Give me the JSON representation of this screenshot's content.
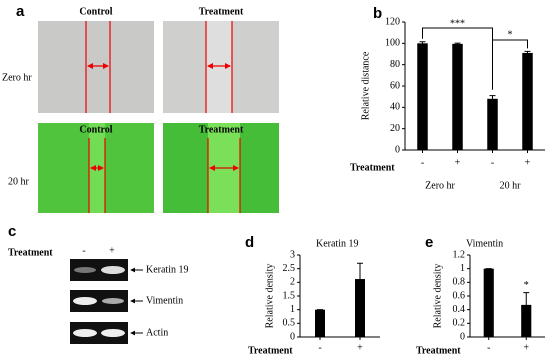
{
  "panel_a": {
    "label": "a",
    "columns": [
      "Control",
      "Treatment"
    ],
    "rows": [
      "Zero hr",
      "20 hr"
    ]
  },
  "panel_c": {
    "label": "c",
    "xlabel": "Treatment",
    "lanes": [
      "-",
      "+"
    ],
    "bands": [
      "Keratin 19",
      "Vimentin",
      "Actin"
    ]
  },
  "chart_data": [
    {
      "type": "bar",
      "label": "b",
      "ylabel": "Relative distance",
      "xlabel": "Treatment",
      "categories": [
        "-",
        "+",
        "-",
        "+"
      ],
      "groups": [
        "Zero hr",
        "20 hr"
      ],
      "values": [
        100,
        99.5,
        48,
        91
      ],
      "errors": [
        1.5,
        0.7,
        3,
        1.5
      ],
      "color": "#000000",
      "ylim": [
        0,
        120
      ],
      "yticks": [
        0,
        20,
        40,
        60,
        80,
        100,
        120
      ],
      "annotations": [
        "***",
        "*"
      ]
    },
    {
      "type": "bar",
      "label": "d",
      "title": "Keratin 19",
      "ylabel": "Relative density",
      "xlabel": "Treatment",
      "categories": [
        "-",
        "+"
      ],
      "values": [
        1,
        2.12
      ],
      "errors": [
        0,
        0.58
      ],
      "color": "#000000",
      "ylim": [
        0,
        3
      ],
      "yticks": [
        0,
        0.5,
        1,
        1.5,
        2,
        2.5,
        3
      ]
    },
    {
      "type": "bar",
      "label": "e",
      "title": "Vimentin",
      "ylabel": "Relative density",
      "xlabel": "Treatment",
      "categories": [
        "-",
        "+"
      ],
      "values": [
        1,
        0.47
      ],
      "errors": [
        0,
        0.18
      ],
      "color": "#000000",
      "ylim": [
        0,
        1.2
      ],
      "yticks": [
        0,
        0.2,
        0.4,
        0.6,
        0.8,
        1,
        1.2
      ],
      "annotations": [
        "*"
      ]
    }
  ]
}
